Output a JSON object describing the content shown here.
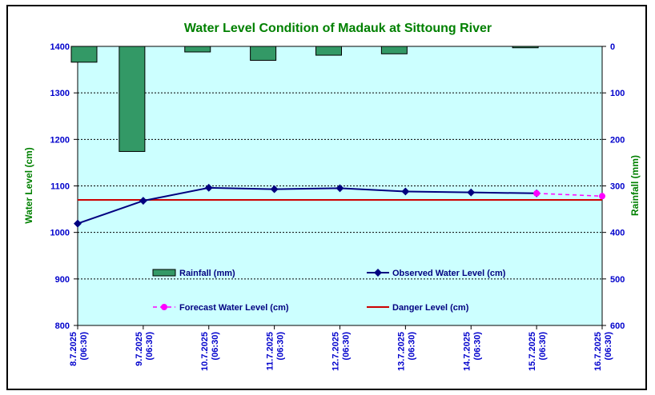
{
  "chart_data": {
    "type": "line",
    "title": "Water Level Condition of Madauk at Sittoung River",
    "ylabel": "Water Level (cm)",
    "y2label": "Rainfall (mm)",
    "ylim": [
      800,
      1400
    ],
    "y2lim": [
      0,
      600
    ],
    "y2_inverted": true,
    "yticks": [
      800,
      900,
      1000,
      1100,
      1200,
      1300,
      1400
    ],
    "y2ticks": [
      0,
      100,
      200,
      300,
      400,
      500,
      600
    ],
    "categories": [
      [
        "8.7.2025",
        "(06:30)"
      ],
      [
        "9.7.2025",
        "(06:30)"
      ],
      [
        "10.7.2025",
        "(06:30)"
      ],
      [
        "11.7.2025",
        "(06:30)"
      ],
      [
        "12.7.2025",
        "(06:30)"
      ],
      [
        "13.7.2025",
        "(06:30)"
      ],
      [
        "14.7.2025",
        "(06:30)"
      ],
      [
        "15.7.2025",
        "(06:30)"
      ],
      [
        "16.7.2025",
        "(06:30)"
      ]
    ],
    "grid": true,
    "series": [
      {
        "name": "Rainfall (mm)",
        "kind": "bar",
        "axis": "right",
        "color": "#339966",
        "values": [
          34,
          226,
          12,
          30,
          19,
          16,
          null,
          3,
          null
        ]
      },
      {
        "name": "Observed Water Level (cm)",
        "kind": "line",
        "axis": "left",
        "color": "#000080",
        "values": [
          1019,
          1068,
          1096,
          1093,
          1095,
          1088,
          1086,
          1084,
          null
        ]
      },
      {
        "name": "Forecast Water Level (cm)",
        "kind": "dashed-line",
        "axis": "left",
        "color": "#ff00ff",
        "values": [
          null,
          null,
          null,
          null,
          null,
          null,
          null,
          1084,
          1078
        ]
      },
      {
        "name": "Danger Level (cm)",
        "kind": "line",
        "axis": "left",
        "color": "#cc0000",
        "constant": 1070
      }
    ],
    "colors": {
      "plot_bg": "#ccffff",
      "title": "#008000",
      "y_axis_label": "#008000",
      "tick_text": "#0000cc"
    }
  }
}
